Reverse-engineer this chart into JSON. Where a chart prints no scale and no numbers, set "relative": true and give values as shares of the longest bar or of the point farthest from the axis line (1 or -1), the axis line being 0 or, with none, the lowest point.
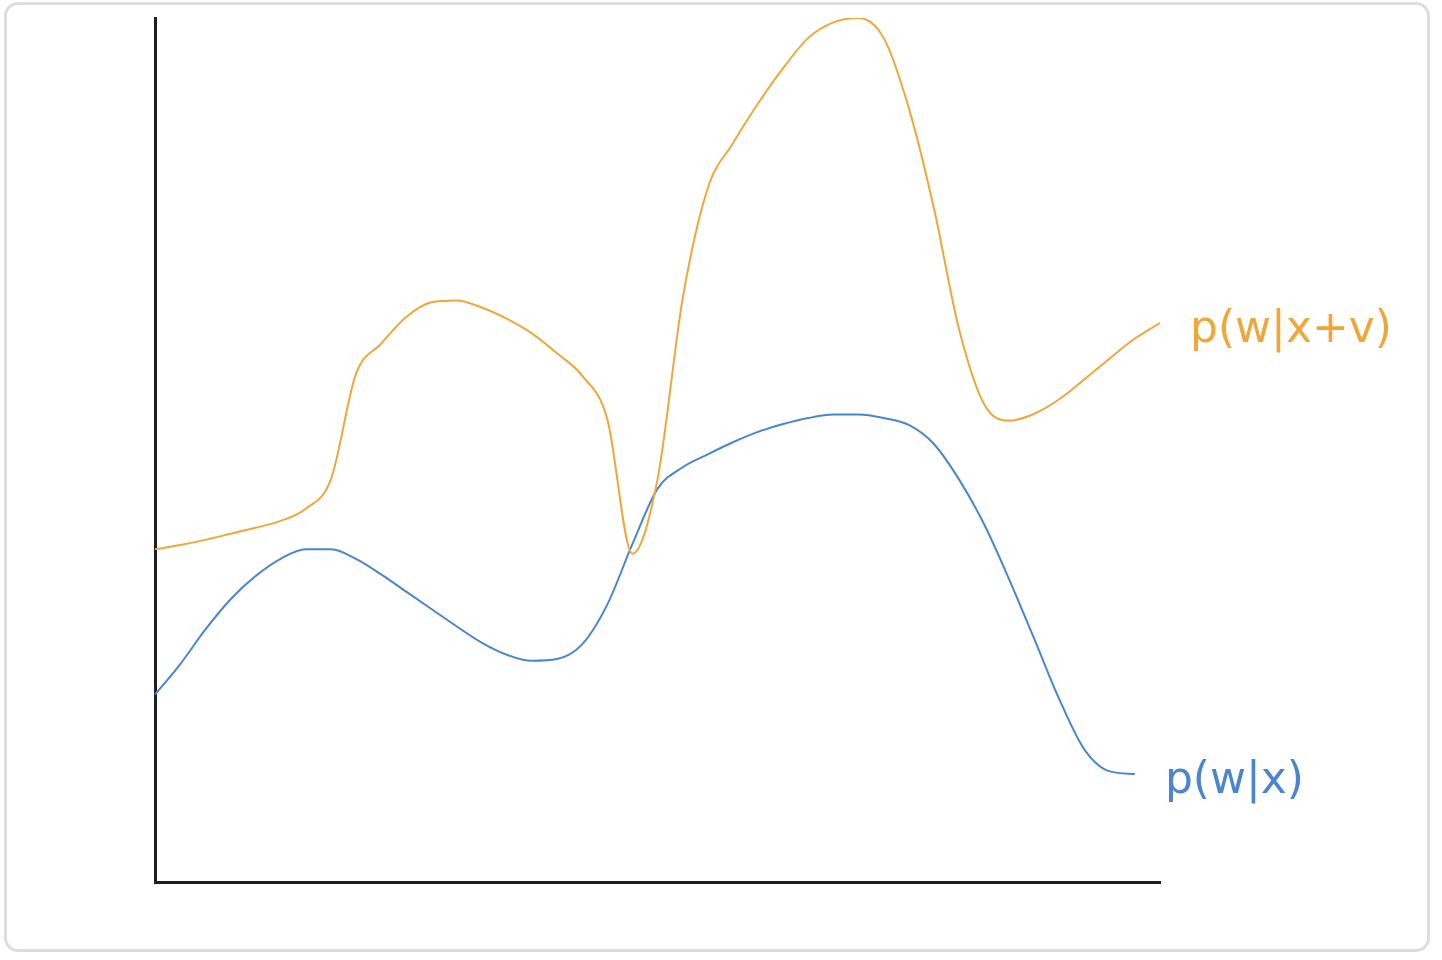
{
  "chart_data": {
    "type": "line",
    "relative": true,
    "legend": false,
    "grid": false,
    "marker": "none",
    "line_style": "solid",
    "categories": [
      null,
      null,
      null,
      null,
      null,
      null,
      null,
      null,
      null,
      null,
      null,
      null,
      null,
      null,
      null,
      null,
      null,
      null,
      null,
      null,
      null,
      null,
      null,
      null,
      null,
      null,
      null,
      null,
      null,
      null,
      null,
      null,
      null,
      null,
      null,
      null,
      null,
      null,
      null,
      null,
      null
    ],
    "series": [
      {
        "name": "p(w|x+v)",
        "color": "#f0a73a",
        "values": [
          0.385,
          0.39,
          0.396,
          0.403,
          0.41,
          0.418,
          0.432,
          0.466,
          0.588,
          0.623,
          0.654,
          0.671,
          0.673,
          0.665,
          0.652,
          0.635,
          0.612,
          0.586,
          0.536,
          0.38,
          0.466,
          0.675,
          0.803,
          0.855,
          0.901,
          0.942,
          0.977,
          0.995,
          1.0,
          0.977,
          0.896,
          0.78,
          0.64,
          0.553,
          0.534,
          0.542,
          0.559,
          0.582,
          0.606,
          0.629,
          0.647
        ]
      },
      {
        "name": "p(w|x)",
        "color": "#4a86d0",
        "values": [
          0.217,
          0.252,
          0.292,
          0.327,
          0.354,
          0.374,
          0.385,
          0.385,
          0.374,
          0.356,
          0.336,
          0.316,
          0.296,
          0.277,
          0.263,
          0.256,
          0.258,
          0.275,
          0.321,
          0.391,
          0.455,
          0.48,
          0.495,
          0.509,
          0.521,
          0.53,
          0.537,
          0.541,
          0.541,
          0.537,
          0.529,
          0.507,
          0.466,
          0.414,
          0.35,
          0.281,
          0.211,
          0.153,
          0.128,
          0.125,
          null
        ]
      }
    ]
  }
}
